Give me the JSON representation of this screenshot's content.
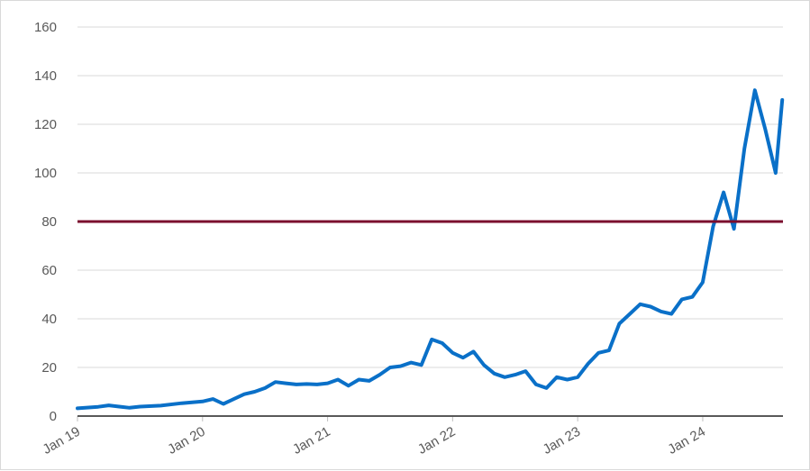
{
  "chart_data": {
    "type": "line",
    "title": "",
    "xlabel": "",
    "ylabel": "",
    "ylim": [
      0,
      160
    ],
    "xlim": [
      "2019-01",
      "2024-08"
    ],
    "x_ticks": [
      "Jan 19",
      "Jan 20",
      "Jan 21",
      "Jan 22",
      "Jan 23",
      "Jan 24"
    ],
    "y_ticks": [
      "0",
      "20",
      "40",
      "60",
      "80",
      "100",
      "120",
      "140",
      "160"
    ],
    "grid": true,
    "legend": "none",
    "reference_line": {
      "y": 80,
      "color": "#7b0d2e"
    },
    "series": [
      {
        "color": "#0a70c8",
        "points": [
          [
            "2019-01",
            3.2
          ],
          [
            "2019-03",
            3.8
          ],
          [
            "2019-04",
            4.4
          ],
          [
            "2019-05",
            3.9
          ],
          [
            "2019-06",
            3.4
          ],
          [
            "2019-07",
            3.9
          ],
          [
            "2019-09",
            4.3
          ],
          [
            "2019-11",
            5.3
          ],
          [
            "2020-01",
            6.0
          ],
          [
            "2020-02",
            7.0
          ],
          [
            "2020-03",
            5.0
          ],
          [
            "2020-04",
            7.0
          ],
          [
            "2020-05",
            9.0
          ],
          [
            "2020-06",
            10.0
          ],
          [
            "2020-07",
            11.5
          ],
          [
            "2020-08",
            14.0
          ],
          [
            "2020-09",
            13.5
          ],
          [
            "2020-10",
            13.0
          ],
          [
            "2020-11",
            13.2
          ],
          [
            "2020-12",
            13.0
          ],
          [
            "2021-01",
            13.5
          ],
          [
            "2021-02",
            15.0
          ],
          [
            "2021-03",
            12.5
          ],
          [
            "2021-04",
            15.0
          ],
          [
            "2021-05",
            14.5
          ],
          [
            "2021-06",
            17.0
          ],
          [
            "2021-07",
            20.0
          ],
          [
            "2021-08",
            20.5
          ],
          [
            "2021-09",
            22.0
          ],
          [
            "2021-10",
            21.0
          ],
          [
            "2021-11",
            31.5
          ],
          [
            "2021-12",
            30.0
          ],
          [
            "2022-01",
            26.0
          ],
          [
            "2022-02",
            24.0
          ],
          [
            "2022-03",
            26.5
          ],
          [
            "2022-04",
            21.0
          ],
          [
            "2022-05",
            17.5
          ],
          [
            "2022-06",
            16.0
          ],
          [
            "2022-07",
            17.0
          ],
          [
            "2022-08",
            18.5
          ],
          [
            "2022-09",
            13.0
          ],
          [
            "2022-10",
            11.5
          ],
          [
            "2022-11",
            16.0
          ],
          [
            "2022-12",
            15.0
          ],
          [
            "2023-01",
            16.0
          ],
          [
            "2023-02",
            21.5
          ],
          [
            "2023-03",
            26.0
          ],
          [
            "2023-04",
            27.0
          ],
          [
            "2023-05",
            38.0
          ],
          [
            "2023-06",
            42.0
          ],
          [
            "2023-07",
            46.0
          ],
          [
            "2023-08",
            45.0
          ],
          [
            "2023-09",
            43.0
          ],
          [
            "2023-10",
            42.0
          ],
          [
            "2023-11",
            48.0
          ],
          [
            "2023-12",
            49.0
          ],
          [
            "2024-01",
            55.0
          ],
          [
            "2024-02",
            78.0
          ],
          [
            "2024-03",
            92.0
          ],
          [
            "2024-04",
            77.0
          ],
          [
            "2024-05",
            110.0
          ],
          [
            "2024-06",
            134.0
          ],
          [
            "2024-07",
            118.0
          ],
          [
            "2024-08",
            100.0
          ],
          [
            "2024-08-20",
            130.0
          ]
        ]
      }
    ]
  }
}
